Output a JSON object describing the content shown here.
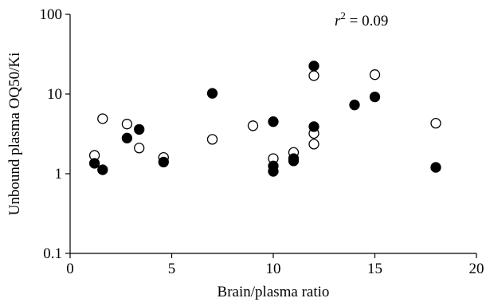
{
  "chart_data": {
    "type": "scatter",
    "xlabel": "Brain/plasma ratio",
    "ylabel": "Unbound plasma OQ50/Ki",
    "xlim": [
      0,
      20
    ],
    "ylim": [
      0.1,
      100
    ],
    "yscale": "log",
    "x_ticks": [
      0,
      5,
      10,
      15,
      20
    ],
    "y_ticks": [
      0.1,
      1,
      10,
      100
    ],
    "x_tick_labels": [
      "0",
      "5",
      "10",
      "15",
      "20"
    ],
    "y_tick_labels": [
      "0.1",
      "1",
      "10",
      "100"
    ],
    "grid": false,
    "annotation": {
      "r_symbol": "r",
      "exponent": "2",
      "value_text": " = 0.09"
    },
    "series": [
      {
        "marker": "open-circle",
        "points": [
          {
            "x": 1.2,
            "y": 1.7
          },
          {
            "x": 1.6,
            "y": 4.9
          },
          {
            "x": 2.8,
            "y": 4.2
          },
          {
            "x": 3.4,
            "y": 2.1
          },
          {
            "x": 4.6,
            "y": 1.6
          },
          {
            "x": 7.0,
            "y": 2.7
          },
          {
            "x": 9.0,
            "y": 4.0
          },
          {
            "x": 10.0,
            "y": 1.55
          },
          {
            "x": 11.0,
            "y": 1.85
          },
          {
            "x": 12.0,
            "y": 17.0
          },
          {
            "x": 12.0,
            "y": 3.2
          },
          {
            "x": 12.0,
            "y": 2.35
          },
          {
            "x": 15.0,
            "y": 17.5
          },
          {
            "x": 18.0,
            "y": 4.3
          }
        ]
      },
      {
        "marker": "filled-circle",
        "points": [
          {
            "x": 1.2,
            "y": 1.35
          },
          {
            "x": 1.6,
            "y": 1.12
          },
          {
            "x": 2.8,
            "y": 2.8
          },
          {
            "x": 3.4,
            "y": 3.6
          },
          {
            "x": 4.6,
            "y": 1.4
          },
          {
            "x": 7.0,
            "y": 10.2
          },
          {
            "x": 10.0,
            "y": 4.5
          },
          {
            "x": 10.0,
            "y": 1.25
          },
          {
            "x": 10.0,
            "y": 1.07
          },
          {
            "x": 11.0,
            "y": 1.55
          },
          {
            "x": 11.0,
            "y": 1.45
          },
          {
            "x": 12.0,
            "y": 22.5
          },
          {
            "x": 12.0,
            "y": 3.9
          },
          {
            "x": 14.0,
            "y": 7.3
          },
          {
            "x": 15.0,
            "y": 9.2
          },
          {
            "x": 18.0,
            "y": 1.2
          }
        ]
      }
    ]
  }
}
